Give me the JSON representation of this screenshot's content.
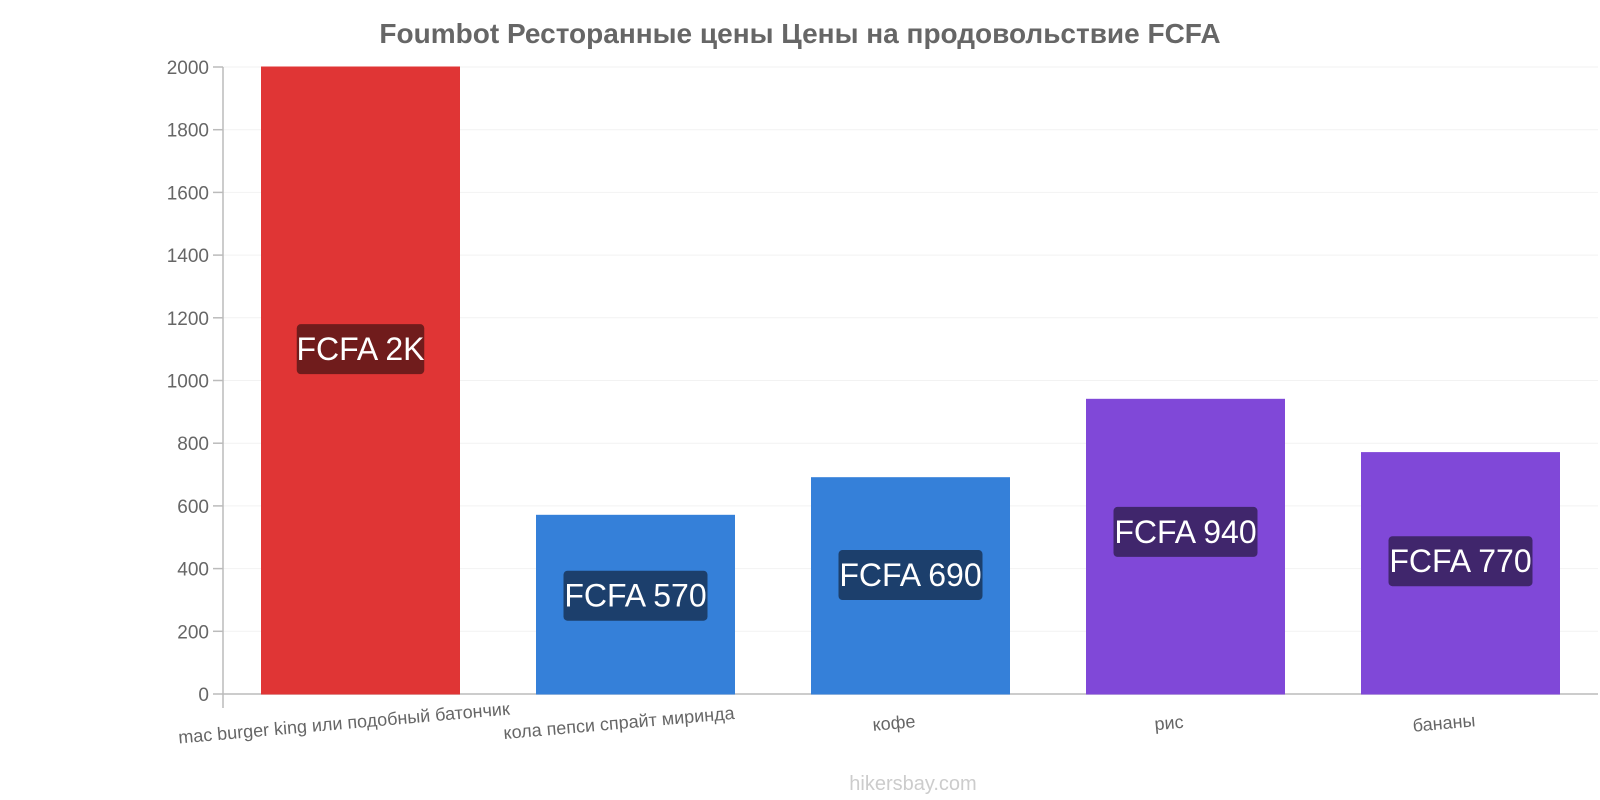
{
  "chart_data": {
    "type": "bar",
    "title": "Foumbot Ресторанные цены Цены на продовольствие FCFA",
    "categories": [
      "mac burger king или подобный батончик",
      "кола пепси спрайт миринда",
      "кофе",
      "рис",
      "бананы"
    ],
    "values": [
      2000,
      570,
      690,
      940,
      770
    ],
    "data_labels": [
      "FCFA 2K",
      "FCFA 570",
      "FCFA 690",
      "FCFA 940",
      "FCFA 770"
    ],
    "bar_colors": [
      "#e03535",
      "#3580d9",
      "#3580d9",
      "#8048d8",
      "#8048d8"
    ],
    "label_bg_colors": [
      "#701c1c",
      "#1c3f6c",
      "#1c3f6c",
      "#40266c",
      "#40266c"
    ],
    "ylim": [
      0,
      2000
    ],
    "yticks": [
      0,
      200,
      400,
      600,
      800,
      1000,
      1200,
      1400,
      1600,
      1800,
      2000
    ],
    "grid": true,
    "legend": "none"
  },
  "footer": {
    "credit": "hikersbay.com"
  }
}
